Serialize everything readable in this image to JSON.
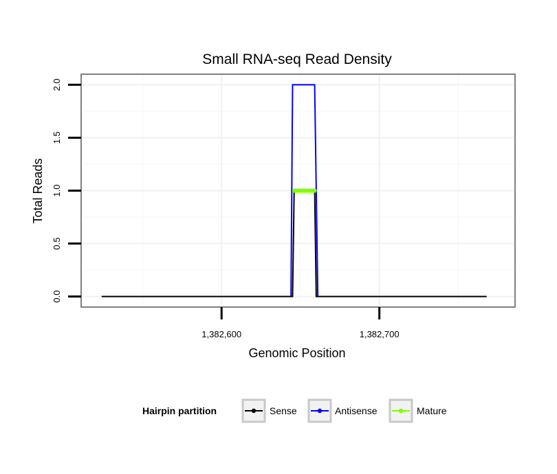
{
  "chart_data": {
    "type": "line",
    "title": "Small RNA-seq Read Density",
    "xlabel": "Genomic Position",
    "ylabel": "Total Reads",
    "xlim": [
      1382511,
      1382786
    ],
    "ylim": [
      -0.1,
      2.1
    ],
    "x_ticks": [
      {
        "value": 1382600,
        "label": "1,382,600"
      },
      {
        "value": 1382700,
        "label": "1,382,700"
      }
    ],
    "y_ticks": [
      {
        "value": 0.0,
        "label": "0.0"
      },
      {
        "value": 0.5,
        "label": "0.5"
      },
      {
        "value": 1.0,
        "label": "1.0"
      },
      {
        "value": 1.5,
        "label": "1.5"
      },
      {
        "value": 2.0,
        "label": "2.0"
      }
    ],
    "minor_x": [
      1382550,
      1382650,
      1382750
    ],
    "minor_y": [
      0.25,
      0.75,
      1.25,
      1.75
    ],
    "grid": true,
    "legend_position": "bottom",
    "legend_title": "Hairpin partition",
    "series": [
      {
        "name": "Sense",
        "color": "#000000",
        "points": [
          [
            1382524,
            0
          ],
          [
            1382645,
            0
          ],
          [
            1382646,
            1
          ],
          [
            1382659,
            1
          ],
          [
            1382660,
            0
          ],
          [
            1382768,
            0
          ]
        ]
      },
      {
        "name": "Antisense",
        "color": "#0000ff",
        "points": [
          [
            1382644,
            0
          ],
          [
            1382645,
            2
          ],
          [
            1382659,
            2
          ],
          [
            1382661,
            0
          ]
        ]
      },
      {
        "name": "Mature",
        "color": "#7fff00",
        "points": [
          [
            1382646,
            1
          ],
          [
            1382659,
            1
          ]
        ]
      }
    ]
  }
}
